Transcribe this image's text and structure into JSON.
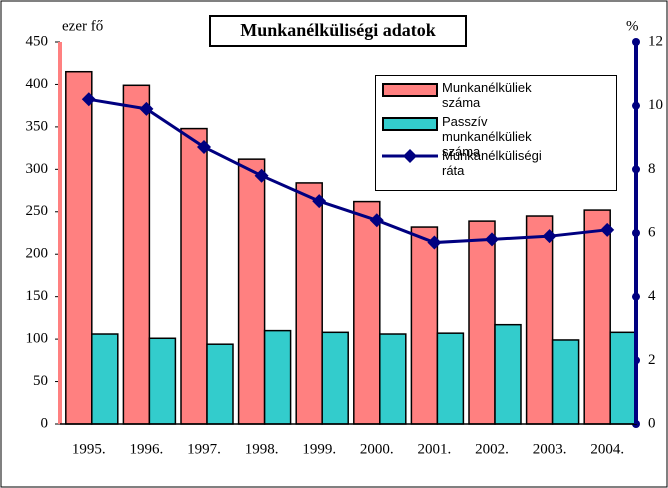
{
  "chart_data": {
    "type": "bar",
    "title": "Munkanélküliségi adatok",
    "ylabel": "ezer fő",
    "y2label": "%",
    "categories": [
      "1995.",
      "1996.",
      "1997.",
      "1998.",
      "1999.",
      "2000.",
      "2001.",
      "2002.",
      "2003.",
      "2004."
    ],
    "series": [
      {
        "name": "Munkanélküliek száma",
        "color": "#ff8080",
        "type": "bar",
        "values": [
          415,
          399,
          348,
          312,
          284,
          262,
          232,
          239,
          245,
          252
        ]
      },
      {
        "name": "Passzív munkanélküliek száma",
        "color": "#33cccc",
        "type": "bar",
        "values": [
          106,
          101,
          94,
          110,
          108,
          106,
          107,
          117,
          99,
          108
        ]
      },
      {
        "name": "Munkanélküliségi ráta",
        "color": "#000080",
        "type": "line",
        "axis": "y2",
        "values": [
          10.2,
          9.9,
          8.7,
          7.8,
          7.0,
          6.4,
          5.7,
          5.8,
          5.9,
          6.1
        ]
      }
    ],
    "ylim": [
      0,
      450
    ],
    "yticks": [
      0,
      50,
      100,
      150,
      200,
      250,
      300,
      350,
      400,
      450
    ],
    "y2lim": [
      0,
      12
    ],
    "y2ticks": [
      0,
      2,
      4,
      6,
      8,
      10,
      12
    ]
  }
}
